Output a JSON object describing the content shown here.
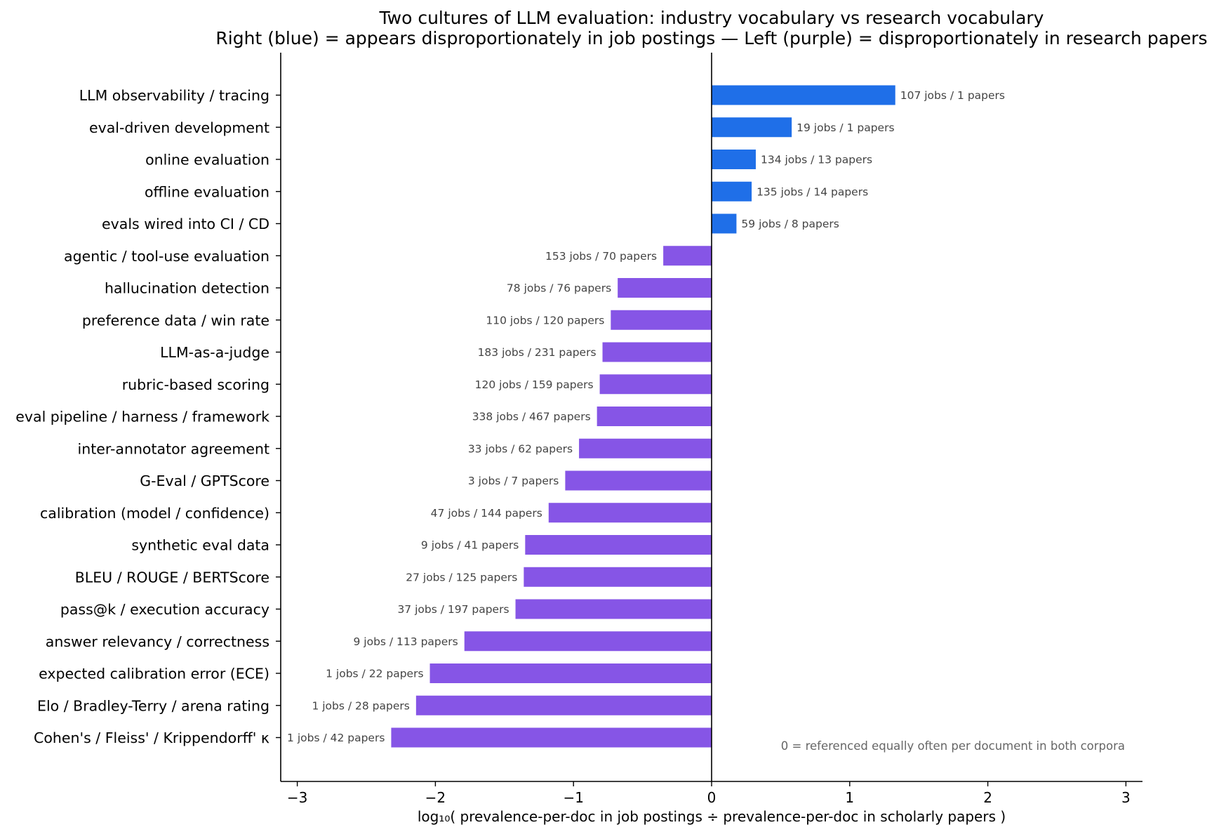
{
  "chart_data": {
    "type": "bar",
    "orientation": "horizontal",
    "title_line1": "Two cultures of LLM evaluation: industry vocabulary vs research vocabulary",
    "title_line2": "Right (blue) = appears disproportionately in job postings   —   Left (purple) = disproportionately in research papers",
    "xlabel": "log₁₀( prevalence-per-doc in job postings  ÷  prevalence-per-doc in scholarly papers )",
    "ylabel": "",
    "xlim": [
      -3.12,
      3.12
    ],
    "xticks": [
      -3,
      -2,
      -1,
      0,
      1,
      2,
      3
    ],
    "xtick_labels": [
      "−3",
      "−2",
      "−1",
      "0",
      "1",
      "2",
      "3"
    ],
    "grid": false,
    "annotation": "0 = referenced equally often per document in both corpora",
    "colors": {
      "positive": "#1f6fe8",
      "negative": "#8655e6"
    },
    "categories": [
      "LLM observability / tracing",
      "eval-driven development",
      "online evaluation",
      "offline evaluation",
      "evals wired into CI / CD",
      "agentic / tool-use evaluation",
      "hallucination detection",
      "preference data / win rate",
      "LLM-as-a-judge",
      "rubric-based scoring",
      "eval pipeline / harness / framework",
      "inter-annotator agreement",
      "G-Eval / GPTScore",
      "calibration (model / confidence)",
      "synthetic eval data",
      "BLEU / ROUGE / BERTScore",
      "pass@k / execution accuracy",
      "answer relevancy / correctness",
      "expected calibration error (ECE)",
      "Elo / Bradley-Terry / arena rating",
      "Cohen's / Fleiss' / Krippendorff' κ"
    ],
    "values": [
      1.33,
      0.58,
      0.32,
      0.29,
      0.18,
      -0.35,
      -0.68,
      -0.73,
      -0.79,
      -0.81,
      -0.83,
      -0.96,
      -1.06,
      -1.18,
      -1.35,
      -1.36,
      -1.42,
      -1.79,
      -2.04,
      -2.14,
      -2.32
    ],
    "bar_labels": [
      "107 jobs / 1 papers",
      "19 jobs / 1 papers",
      "134 jobs / 13 papers",
      "135 jobs / 14 papers",
      "59 jobs / 8 papers",
      "153 jobs / 70 papers",
      "78 jobs / 76 papers",
      "110 jobs / 120 papers",
      "183 jobs / 231 papers",
      "120 jobs / 159 papers",
      "338 jobs / 467 papers",
      "33 jobs / 62 papers",
      "3 jobs / 7 papers",
      "47 jobs / 144 papers",
      "9 jobs / 41 papers",
      "27 jobs / 125 papers",
      "37 jobs / 197 papers",
      "9 jobs / 113 papers",
      "1 jobs / 22 papers",
      "1 jobs / 28 papers",
      "1 jobs / 42 papers"
    ]
  }
}
